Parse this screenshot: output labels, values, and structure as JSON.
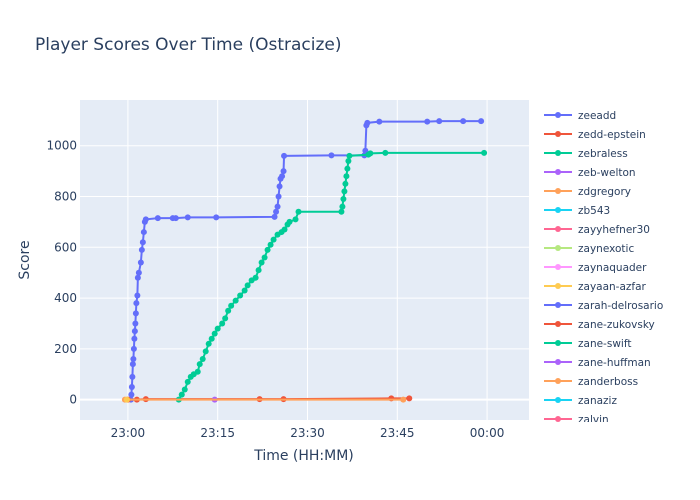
{
  "chart_data": {
    "type": "line",
    "title": "Player Scores Over Time (Ostracize)",
    "xlabel": "Time (HH:MM)",
    "ylabel": "Score",
    "x_range": [
      "22:52",
      "00:07"
    ],
    "ylim": [
      -80,
      1180
    ],
    "x_ticks": [
      "23:00",
      "23:15",
      "23:30",
      "23:45",
      "00:00"
    ],
    "y_ticks": [
      0,
      200,
      400,
      600,
      800,
      1000
    ],
    "legend_position": "right",
    "series": [
      {
        "name": "zeeadd",
        "color": "#636efa",
        "points": [
          [
            "23:00:30",
            0
          ],
          [
            "23:00:35",
            20
          ],
          [
            "23:00:40",
            50
          ],
          [
            "23:00:45",
            90
          ],
          [
            "23:00:50",
            140
          ],
          [
            "23:00:55",
            160
          ],
          [
            "23:01:00",
            200
          ],
          [
            "23:01:05",
            240
          ],
          [
            "23:01:10",
            270
          ],
          [
            "23:01:15",
            300
          ],
          [
            "23:01:20",
            340
          ],
          [
            "23:01:25",
            380
          ],
          [
            "23:01:35",
            410
          ],
          [
            "23:01:40",
            480
          ],
          [
            "23:01:50",
            500
          ],
          [
            "23:02:10",
            540
          ],
          [
            "23:02:20",
            590
          ],
          [
            "23:02:30",
            620
          ],
          [
            "23:02:40",
            660
          ],
          [
            "23:02:50",
            700
          ],
          [
            "23:03:00",
            710
          ],
          [
            "23:05:00",
            715
          ],
          [
            "23:07:30",
            715
          ],
          [
            "23:08:00",
            715
          ],
          [
            "23:10:00",
            718
          ],
          [
            "23:14:45",
            718
          ],
          [
            "23:24:30",
            720
          ],
          [
            "23:24:45",
            740
          ],
          [
            "23:25:00",
            760
          ],
          [
            "23:25:10",
            800
          ],
          [
            "23:25:20",
            840
          ],
          [
            "23:25:30",
            870
          ],
          [
            "23:25:45",
            880
          ],
          [
            "23:26:00",
            900
          ],
          [
            "23:26:05",
            960
          ],
          [
            "23:34:00",
            962
          ],
          [
            "23:39:30",
            962
          ],
          [
            "23:39:40",
            980
          ],
          [
            "23:39:50",
            1080
          ],
          [
            "23:40:00",
            1090
          ],
          [
            "23:42:00",
            1095
          ],
          [
            "23:50:00",
            1095
          ],
          [
            "23:52:00",
            1097
          ],
          [
            "23:56:00",
            1097
          ],
          [
            "23:59:00",
            1097
          ]
        ]
      },
      {
        "name": "zedd-epstein",
        "color": "#ef553b",
        "points": [
          [
            "23:00:00",
            0
          ],
          [
            "23:01:30",
            0
          ],
          [
            "23:03:00",
            2
          ],
          [
            "23:22:00",
            2
          ],
          [
            "23:26:00",
            2
          ],
          [
            "23:44:00",
            5
          ],
          [
            "23:47:00",
            5
          ]
        ]
      },
      {
        "name": "zebraless",
        "color": "#00cc96",
        "points": [
          [
            "23:08:30",
            0
          ],
          [
            "23:09:00",
            20
          ],
          [
            "23:09:30",
            40
          ],
          [
            "23:10:00",
            70
          ],
          [
            "23:10:30",
            90
          ],
          [
            "23:11:00",
            100
          ],
          [
            "23:11:40",
            110
          ],
          [
            "23:12:00",
            140
          ],
          [
            "23:12:30",
            160
          ],
          [
            "23:13:00",
            190
          ],
          [
            "23:13:30",
            220
          ],
          [
            "23:14:00",
            240
          ],
          [
            "23:14:30",
            260
          ],
          [
            "23:15:00",
            280
          ],
          [
            "23:15:45",
            300
          ],
          [
            "23:16:15",
            320
          ],
          [
            "23:16:45",
            350
          ],
          [
            "23:17:15",
            370
          ],
          [
            "23:18:00",
            390
          ],
          [
            "23:18:45",
            410
          ],
          [
            "23:19:30",
            430
          ],
          [
            "23:20:00",
            450
          ],
          [
            "23:20:40",
            470
          ],
          [
            "23:21:20",
            480
          ],
          [
            "23:21:50",
            510
          ],
          [
            "23:22:20",
            540
          ],
          [
            "23:22:50",
            560
          ],
          [
            "23:23:20",
            590
          ],
          [
            "23:23:50",
            610
          ],
          [
            "23:24:20",
            630
          ],
          [
            "23:25:00",
            650
          ],
          [
            "23:25:40",
            660
          ],
          [
            "23:26:10",
            670
          ],
          [
            "23:26:40",
            690
          ],
          [
            "23:27:00",
            700
          ],
          [
            "23:28:00",
            710
          ],
          [
            "23:28:30",
            740
          ],
          [
            "23:35:40",
            740
          ],
          [
            "23:35:50",
            760
          ],
          [
            "23:36:00",
            790
          ],
          [
            "23:36:10",
            820
          ],
          [
            "23:36:20",
            850
          ],
          [
            "23:36:30",
            880
          ],
          [
            "23:36:40",
            910
          ],
          [
            "23:36:50",
            940
          ],
          [
            "23:37:00",
            960
          ],
          [
            "23:40:10",
            965
          ],
          [
            "23:40:30",
            970
          ],
          [
            "23:43:00",
            972
          ],
          [
            "23:59:30",
            972
          ]
        ]
      },
      {
        "name": "zeb-welton",
        "color": "#ab63fa",
        "points": [
          [
            "23:14:30",
            0
          ]
        ]
      },
      {
        "name": "zdgregory",
        "color": "#ffa15a",
        "points": [
          [
            "22:59:30",
            0
          ],
          [
            "23:46:00",
            0
          ]
        ]
      },
      {
        "name": "zb543",
        "color": "#19d3f3",
        "points": []
      },
      {
        "name": "zayyhefner30",
        "color": "#ff6692",
        "points": []
      },
      {
        "name": "zaynexotic",
        "color": "#b6e880",
        "points": []
      },
      {
        "name": "zaynaquader",
        "color": "#ff97ff",
        "points": []
      },
      {
        "name": "zayaan-azfar",
        "color": "#fecb52",
        "points": [
          [
            "22:59:50",
            0
          ]
        ]
      },
      {
        "name": "zarah-delrosario",
        "color": "#636efa",
        "points": []
      },
      {
        "name": "zane-zukovsky",
        "color": "#ef553b",
        "points": []
      },
      {
        "name": "zane-swift",
        "color": "#00cc96",
        "points": []
      },
      {
        "name": "zane-huffman",
        "color": "#ab63fa",
        "points": []
      },
      {
        "name": "zanderboss",
        "color": "#ffa15a",
        "points": []
      },
      {
        "name": "zanaziz",
        "color": "#19d3f3",
        "points": []
      },
      {
        "name": "zalvin",
        "color": "#ff6692",
        "points": []
      }
    ]
  }
}
